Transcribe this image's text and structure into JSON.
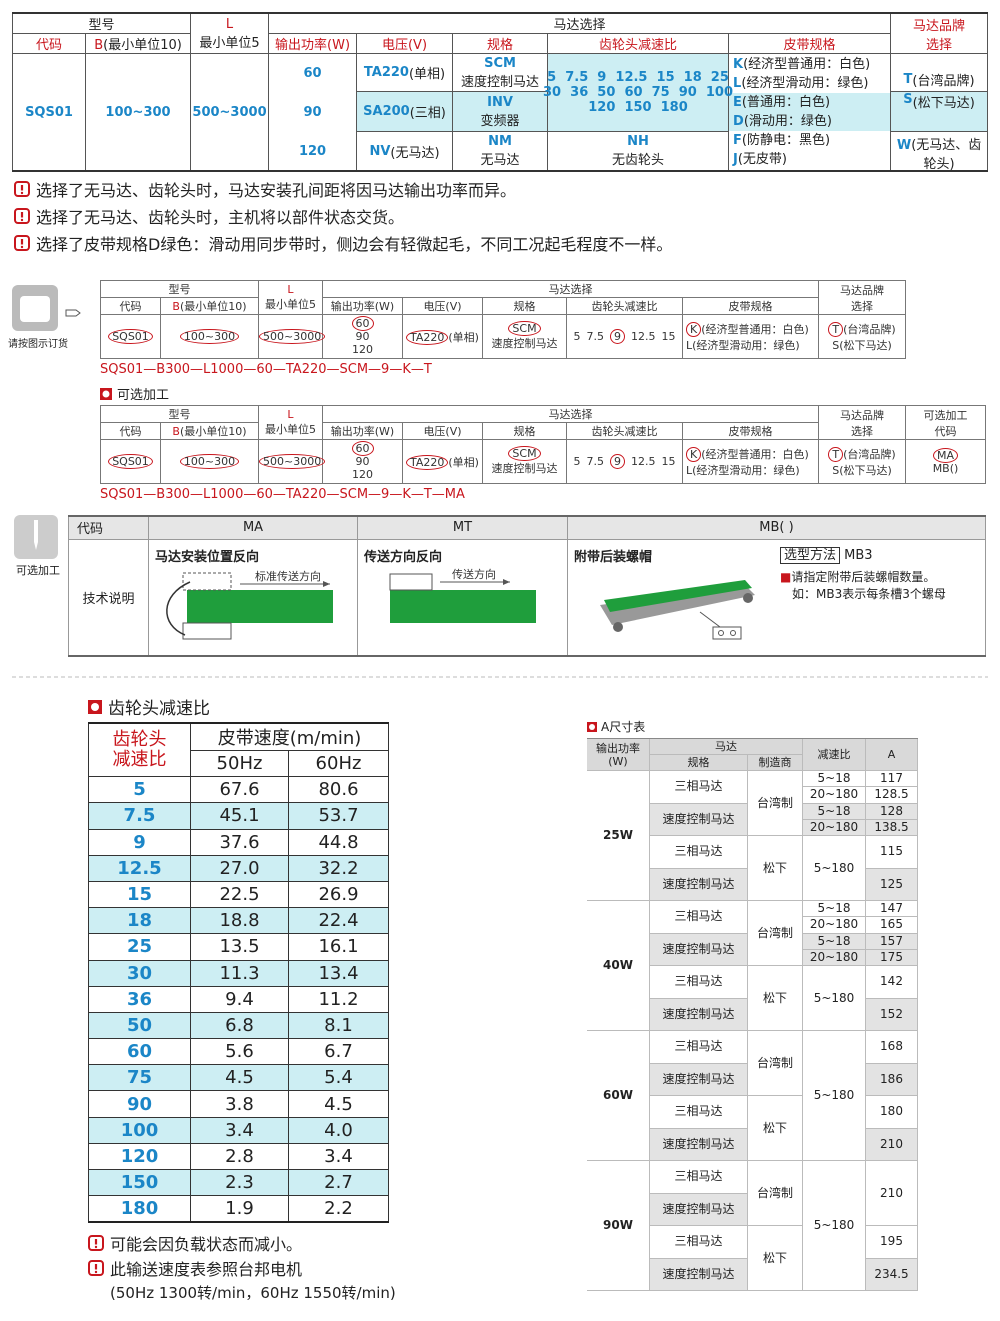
{
  "spec_table": {
    "headers": {
      "model": "型号",
      "l_top": "L",
      "l": "最小单位5",
      "motor_select": "马达选择",
      "brand": [
        "马达品牌",
        "选择"
      ],
      "code": "代码",
      "b_code": "B",
      "b_label": "(最小单位10)",
      "power": "输出功率(W)",
      "voltage": "电压(V)",
      "spec": "规格",
      "ratio": "齿轮头减速比",
      "belt": "皮带规格"
    },
    "body": {
      "code": "SQS01",
      "b": "100~300",
      "l": "500~3000",
      "powers": [
        "60",
        "90",
        "120"
      ],
      "voltages": [
        {
          "code": "TA220",
          "label": "(单相)"
        },
        {
          "code": "SA200",
          "label": "(三相)"
        },
        {
          "code": "NV",
          "label": "(无马达)"
        }
      ],
      "specs": [
        {
          "code": "SCM",
          "label": "速度控制马达"
        },
        {
          "code": "INV",
          "label": "变频器"
        },
        {
          "code": "NM",
          "label": "无马达"
        }
      ],
      "ratios": [
        "5  7.5  9  12.5  15  18  25",
        "30  36  50  60  75  90  100",
        "120  150  180"
      ],
      "no_gear": {
        "code": "NH",
        "label": "无齿轮头"
      },
      "belts": [
        {
          "code": "K",
          "label": "(经济型普通用：白色)"
        },
        {
          "code": "L",
          "label": "(经济型滑动用：绿色)"
        },
        {
          "code": "E",
          "label": "(普通用：白色)"
        },
        {
          "code": "D",
          "label": "(滑动用：绿色)"
        },
        {
          "code": "F",
          "label": "(防静电：黑色)"
        },
        {
          "code": "J",
          "label": "(无皮带)"
        }
      ],
      "brands": [
        {
          "code": "T",
          "label": "(台湾品牌)"
        },
        {
          "code": "S",
          "label": "(松下马达)"
        },
        {
          "code": "W",
          "label": "(无马达、齿轮头)"
        }
      ]
    }
  },
  "notes": [
    "选择了无马达、齿轮头时，马达安装孔间距将因马达输出功率而异。",
    "选择了无马达、齿轮头时，主机将以部件状态交货。",
    "选择了皮带规格D绿色：滑动用同步带时，侧边会有轻微起毛，不同工况起毛程度不一样。"
  ],
  "order_label": "请按图示订货",
  "option_title": "可选加工",
  "order_examples": [
    {
      "headers": {
        "model": "型号",
        "l_top": "L",
        "l": "最小单位5",
        "motor_select": "马达选择",
        "brand": [
          "马达品牌",
          "选择"
        ],
        "code": "代码",
        "b_code": "B",
        "b_label": "(最小单位10)",
        "power": "输出功率(W)",
        "voltage": "电压(V)",
        "spec": "规格",
        "ratio": "齿轮头减速比",
        "belt": "皮带规格"
      },
      "values": {
        "code": "SQS01",
        "b": "100~300",
        "l": "500~3000",
        "powers": [
          "60",
          "90",
          "120"
        ],
        "voltage": {
          "code": "TA220",
          "label": "(单相)"
        },
        "spec": {
          "code": "SCM",
          "label": "速度控制马达"
        },
        "ratios": [
          "5",
          "7.5",
          "9",
          "12.5",
          "15"
        ],
        "belts": [
          {
            "code": "K",
            "label": "(经济型普通用：白色)"
          },
          {
            "code": "L",
            "label": "(经济型滑动用：绿色)"
          }
        ],
        "brands": [
          {
            "code": "T",
            "label": "(台湾品牌)"
          },
          {
            "code": "S",
            "label": "(松下马达)"
          }
        ]
      },
      "code_string": "SQS01—B300—L1000—60—TA220—SCM—9—K—T"
    },
    {
      "headers": {
        "model": "型号",
        "l_top": "L",
        "l": "最小单位5",
        "motor_select": "马达选择",
        "brand": [
          "马达品牌",
          "选择"
        ],
        "option": [
          "可选加工",
          "代码"
        ],
        "code": "代码",
        "b_code": "B",
        "b_label": "(最小单位10)",
        "power": "输出功率(W)",
        "voltage": "电压(V)",
        "spec": "规格",
        "ratio": "齿轮头减速比",
        "belt": "皮带规格"
      },
      "values": {
        "code": "SQS01",
        "b": "100~300",
        "l": "500~3000",
        "powers": [
          "60",
          "90",
          "120"
        ],
        "voltage": {
          "code": "TA220",
          "label": "(单相)"
        },
        "spec": {
          "code": "SCM",
          "label": "速度控制马达"
        },
        "ratios": [
          "5",
          "7.5",
          "9",
          "12.5",
          "15"
        ],
        "belts": [
          {
            "code": "K",
            "label": "(经济型普通用：白色)"
          },
          {
            "code": "L",
            "label": "(经济型滑动用：绿色)"
          }
        ],
        "brands": [
          {
            "code": "T",
            "label": "(台湾品牌)"
          },
          {
            "code": "S",
            "label": "(松下马达)"
          }
        ],
        "options": [
          "MA",
          "MB()"
        ]
      },
      "code_string": "SQS01—B300—L1000—60—TA220—SCM—9—K—T—MA"
    }
  ],
  "options_table": {
    "side_label": "可选加工",
    "headers": {
      "code": "代码",
      "ma": "MA",
      "mt": "MT",
      "mb": "MB( )"
    },
    "row_label": "技术说明",
    "ma": {
      "title": "马达安装位置反向",
      "arrow_label": "标准传送方向"
    },
    "mt": {
      "title": "传送方向反向",
      "arrow_label": "传送方向"
    },
    "mb": {
      "title": "附带后装螺帽",
      "method_label": "选型方法",
      "method_value": "MB3",
      "notes": [
        "请指定附带后装螺帽数量。",
        "如：MB3表示每条槽3个螺母"
      ]
    }
  },
  "gear_table": {
    "title": "齿轮头减速比",
    "headers": {
      "ratio": [
        "齿轮头",
        "减速比"
      ],
      "speed": "皮带速度(m/min)",
      "hz50": "50Hz",
      "hz60": "60Hz"
    },
    "rows": [
      [
        "5",
        "67.6",
        "80.6"
      ],
      [
        "7.5",
        "45.1",
        "53.7"
      ],
      [
        "9",
        "37.6",
        "44.8"
      ],
      [
        "12.5",
        "27.0",
        "32.2"
      ],
      [
        "15",
        "22.5",
        "26.9"
      ],
      [
        "18",
        "18.8",
        "22.4"
      ],
      [
        "25",
        "13.5",
        "16.1"
      ],
      [
        "30",
        "11.3",
        "13.4"
      ],
      [
        "36",
        "9.4",
        "11.2"
      ],
      [
        "50",
        "6.8",
        "8.1"
      ],
      [
        "60",
        "5.6",
        "6.7"
      ],
      [
        "75",
        "4.5",
        "5.4"
      ],
      [
        "90",
        "3.8",
        "4.5"
      ],
      [
        "100",
        "3.4",
        "4.0"
      ],
      [
        "120",
        "2.8",
        "3.4"
      ],
      [
        "150",
        "2.3",
        "2.7"
      ],
      [
        "180",
        "1.9",
        "2.2"
      ]
    ],
    "notes": [
      "可能会因负载状态而减小。",
      "此输送速度表参照台邦电机",
      "(50Hz 1300转/min，60Hz 1550转/min)"
    ]
  },
  "a_table": {
    "title": "A尺寸表",
    "headers": {
      "power": [
        "输出功率",
        "(W)"
      ],
      "motor": "马达",
      "spec": "规格",
      "maker": "制造商",
      "ratio": "减速比",
      "a": "A"
    },
    "groups": [
      {
        "power": "25W",
        "makers": [
          {
            "name": "台湾制",
            "motors": [
              {
                "spec": "三相马达",
                "ratios": [
                  "5~18",
                  "20~180"
                ],
                "a": [
                  "117",
                  "128.5"
                ]
              },
              {
                "spec": "速度控制马达",
                "ratios": [
                  "5~18",
                  "20~180"
                ],
                "a": [
                  "128",
                  "138.5"
                ]
              }
            ]
          },
          {
            "name": "松下",
            "ratio": "5~180",
            "motors": [
              {
                "spec": "三相马达",
                "a": "115"
              },
              {
                "spec": "速度控制马达",
                "a": "125"
              }
            ]
          }
        ]
      },
      {
        "power": "40W",
        "makers": [
          {
            "name": "台湾制",
            "motors": [
              {
                "spec": "三相马达",
                "ratios": [
                  "5~18",
                  "20~180"
                ],
                "a": [
                  "147",
                  "165"
                ]
              },
              {
                "spec": "速度控制马达",
                "ratios": [
                  "5~18",
                  "20~180"
                ],
                "a": [
                  "157",
                  "175"
                ]
              }
            ]
          },
          {
            "name": "松下",
            "ratio": "5~180",
            "motors": [
              {
                "spec": "三相马达",
                "a": "142"
              },
              {
                "spec": "速度控制马达",
                "a": "152"
              }
            ]
          }
        ]
      },
      {
        "power": "60W",
        "ratio": "5~180",
        "makers": [
          {
            "name": "台湾制",
            "motors": [
              {
                "spec": "三相马达",
                "a": "168"
              },
              {
                "spec": "速度控制马达",
                "a": "186"
              }
            ]
          },
          {
            "name": "松下",
            "motors": [
              {
                "spec": "三相马达",
                "a": "180"
              },
              {
                "spec": "速度控制马达",
                "a": "210"
              }
            ]
          }
        ]
      },
      {
        "power": "90W",
        "ratio": "5~180",
        "makers": [
          {
            "name": "台湾制",
            "a": "210",
            "motors": [
              {
                "spec": "三相马达"
              },
              {
                "spec": "速度控制马达"
              }
            ]
          },
          {
            "name": "松下",
            "motors": [
              {
                "spec": "三相马达",
                "a": "195"
              },
              {
                "spec": "速度控制马达",
                "a": "234.5"
              }
            ]
          }
        ]
      }
    ]
  }
}
